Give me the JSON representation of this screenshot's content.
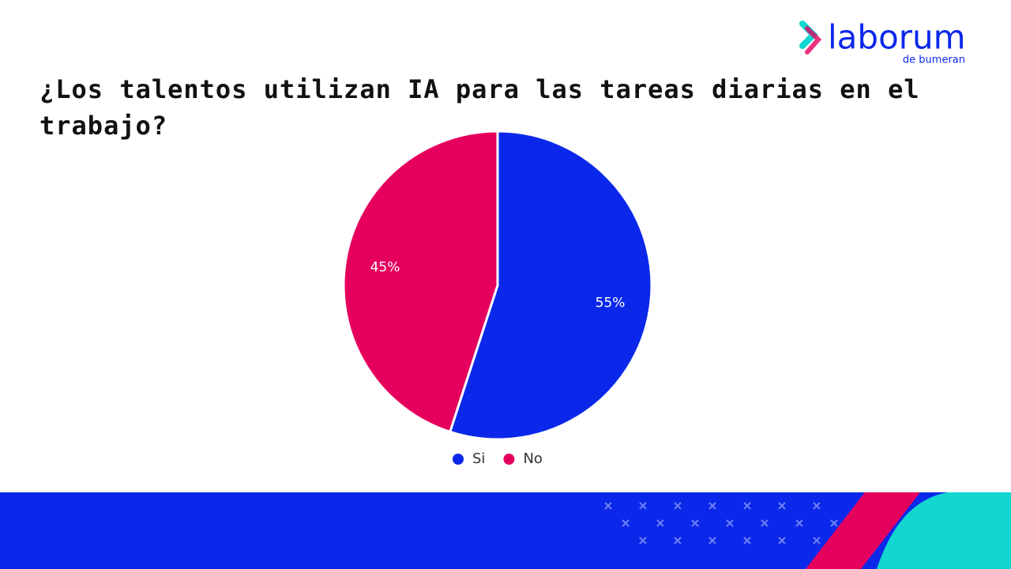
{
  "logo": {
    "name": "laborum",
    "tagline": "de bumeran"
  },
  "chart_data": {
    "type": "pie",
    "title": "¿Los talentos utilizan IA para las tareas diarias en el trabajo?",
    "categories": [
      "Si",
      "No"
    ],
    "values": [
      55,
      45
    ],
    "value_labels": [
      "55%",
      "45%"
    ],
    "colors": [
      "#0b28ea",
      "#e6005e"
    ],
    "legend": "bottom"
  }
}
